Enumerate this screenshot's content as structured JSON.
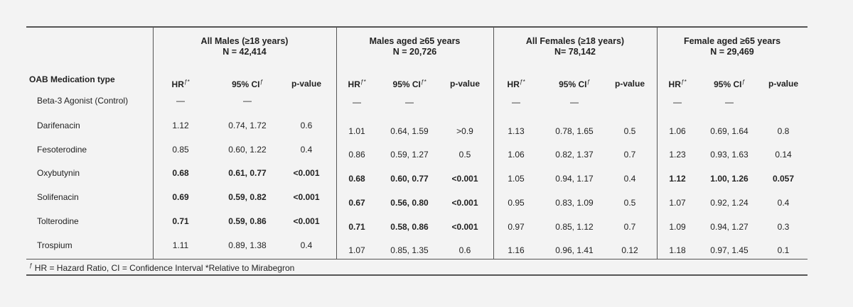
{
  "groups": [
    {
      "title": "All Males (≥18 years)",
      "n": "N = 42,414"
    },
    {
      "title": "Males aged ≥65 years",
      "n": "N = 20,726"
    },
    {
      "title": "All Females (≥18 years)",
      "n": "N= 78,142"
    },
    {
      "title": "Female aged ≥65 years",
      "n": "N = 29,469"
    }
  ],
  "column_header": "OAB Medication type",
  "subheaders": [
    {
      "hr": "HR",
      "hr_sup": "ƒ*",
      "ci": "95% CI",
      "ci_sup": "ƒ",
      "p": "p-value"
    },
    {
      "hr": "HR",
      "hr_sup": "ƒ*",
      "ci": "95% CI",
      "ci_sup": "ƒ*",
      "p": "p-value"
    },
    {
      "hr": "HR",
      "hr_sup": "ƒ*",
      "ci": "95% CI",
      "ci_sup": "ƒ",
      "p": "p-value"
    },
    {
      "hr": "HR",
      "hr_sup": "ƒ*",
      "ci": "95% CI",
      "ci_sup": "ƒ",
      "p": "p-value"
    }
  ],
  "rows": [
    {
      "name": "Beta-3 Agonist (Control)",
      "cells": [
        [
          "—",
          "—",
          ""
        ],
        [
          "—",
          "—",
          ""
        ],
        [
          "—",
          "—",
          ""
        ],
        [
          "—",
          "—",
          ""
        ]
      ],
      "bold": [
        false,
        false,
        false,
        false
      ]
    },
    {
      "name": "Darifenacin",
      "cells": [
        [
          "1.12",
          "0.74, 1.72",
          "0.6"
        ],
        [
          "1.01",
          "0.64, 1.59",
          ">0.9"
        ],
        [
          "1.13",
          "0.78, 1.65",
          "0.5"
        ],
        [
          "1.06",
          "0.69, 1.64",
          "0.8"
        ]
      ],
      "bold": [
        false,
        false,
        false,
        false
      ]
    },
    {
      "name": "Fesoterodine",
      "cells": [
        [
          "0.85",
          "0.60, 1.22",
          "0.4"
        ],
        [
          "0.86",
          "0.59, 1.27",
          "0.5"
        ],
        [
          "1.06",
          "0.82, 1.37",
          "0.7"
        ],
        [
          "1.23",
          "0.93, 1.63",
          "0.14"
        ]
      ],
      "bold": [
        false,
        false,
        false,
        false
      ]
    },
    {
      "name": "Oxybutynin",
      "cells": [
        [
          "0.68",
          "0.61, 0.77",
          "<0.001"
        ],
        [
          "0.68",
          "0.60, 0.77",
          "<0.001"
        ],
        [
          "1.05",
          "0.94, 1.17",
          "0.4"
        ],
        [
          "1.12",
          "1.00, 1.26",
          "0.057"
        ]
      ],
      "bold": [
        true,
        true,
        false,
        true
      ]
    },
    {
      "name": "Solifenacin",
      "cells": [
        [
          "0.69",
          "0.59, 0.82",
          "<0.001"
        ],
        [
          "0.67",
          "0.56, 0.80",
          "<0.001"
        ],
        [
          "0.95",
          "0.83, 1.09",
          "0.5"
        ],
        [
          "1.07",
          "0.92, 1.24",
          "0.4"
        ]
      ],
      "bold": [
        true,
        true,
        false,
        false
      ]
    },
    {
      "name": "Tolterodine",
      "cells": [
        [
          "0.71",
          "0.59, 0.86",
          "<0.001"
        ],
        [
          "0.71",
          "0.58, 0.86",
          "<0.001"
        ],
        [
          "0.97",
          "0.85, 1.12",
          "0.7"
        ],
        [
          "1.09",
          "0.94, 1.27",
          "0.3"
        ]
      ],
      "bold": [
        true,
        true,
        false,
        false
      ]
    },
    {
      "name": "Trospium",
      "cells": [
        [
          "1.11",
          "0.89, 1.38",
          "0.4"
        ],
        [
          "1.07",
          "0.85, 1.35",
          "0.6"
        ],
        [
          "1.16",
          "0.96, 1.41",
          "0.12"
        ],
        [
          "1.18",
          "0.97, 1.45",
          "0.1"
        ]
      ],
      "bold": [
        false,
        false,
        false,
        false
      ]
    }
  ],
  "footnote": {
    "sup": "ƒ",
    "text": " HR = Hazard Ratio, CI = Confidence Interval  *Relative to Mirabegron"
  }
}
